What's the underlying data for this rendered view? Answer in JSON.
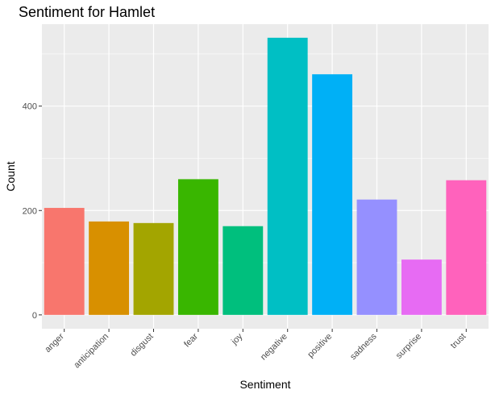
{
  "chart_data": {
    "type": "bar",
    "title": "Sentiment for Hamlet",
    "xlabel": "Sentiment",
    "ylabel": "Count",
    "categories": [
      "anger",
      "anticipation",
      "disgust",
      "fear",
      "joy",
      "negative",
      "positive",
      "sadness",
      "surprise",
      "trust"
    ],
    "values": [
      205,
      179,
      176,
      260,
      170,
      531,
      461,
      221,
      106,
      258
    ],
    "colors": [
      "#F8766D",
      "#D89000",
      "#A3A500",
      "#39B600",
      "#00BF7D",
      "#00BFC4",
      "#00B0F6",
      "#9590FF",
      "#E76BF3",
      "#FF62BC"
    ],
    "yticks": [
      0,
      200,
      400
    ],
    "ylim": [
      -26.5,
      557
    ],
    "grid": true,
    "panel_color": "#EBEBEB",
    "legend": "none"
  }
}
